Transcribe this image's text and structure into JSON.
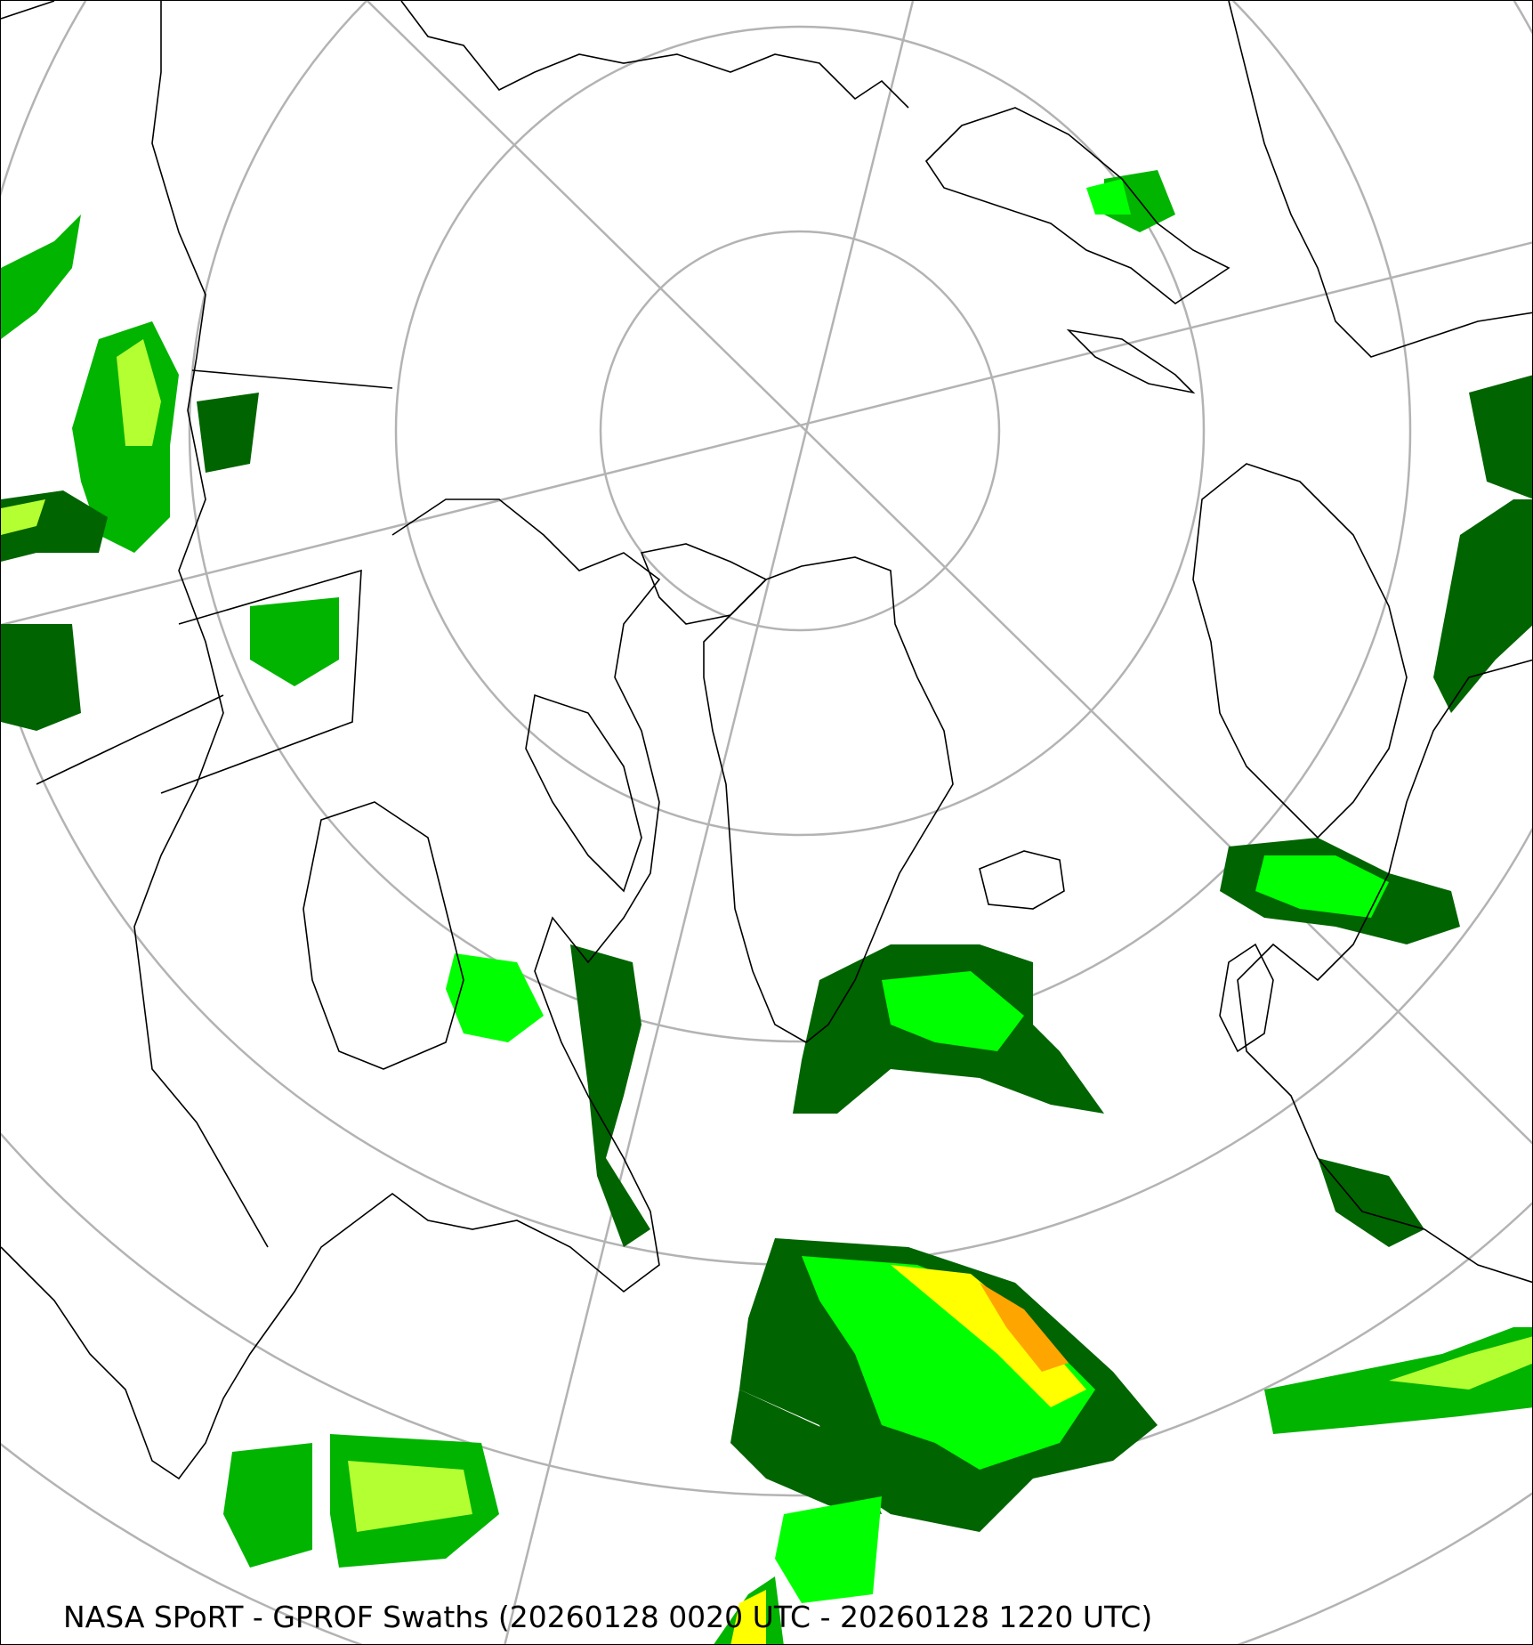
{
  "map": {
    "caption": "NASA SPoRT - GPROF Swaths (20260128 0020 UTC - 20260128 1220 UTC)",
    "projection": "north polar stereographic",
    "graticule_color": "#b3b3b3",
    "coastline_color": "#000000",
    "precip_colors": [
      "#006400",
      "#00b400",
      "#00ff00",
      "#b4ff32",
      "#ffff00",
      "#ffa500",
      "#ff0000"
    ]
  }
}
